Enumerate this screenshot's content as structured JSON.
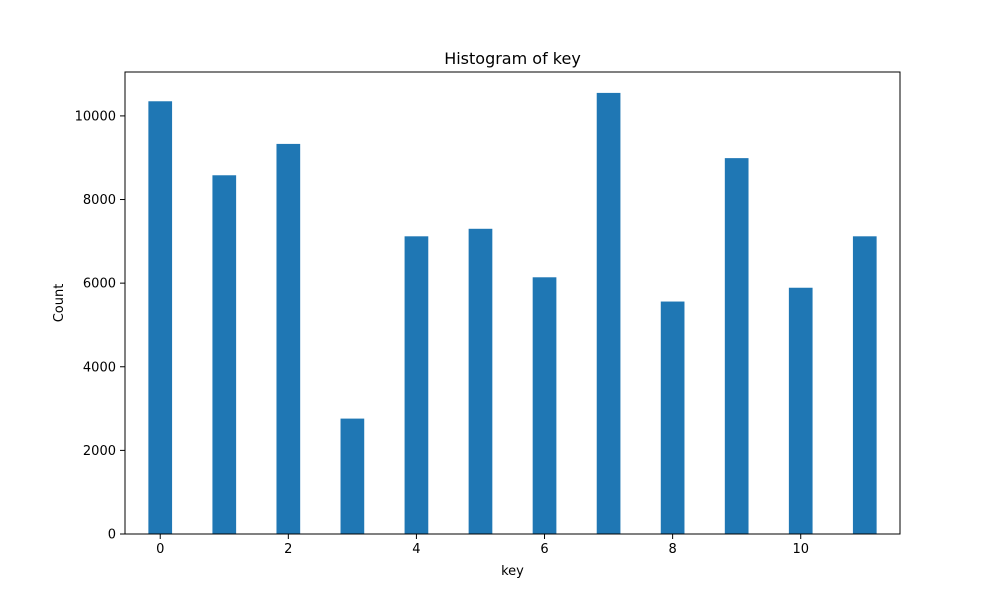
{
  "chart_data": {
    "type": "bar",
    "title": "Histogram of key",
    "xlabel": "key",
    "ylabel": "Count",
    "bar_color": "#1f77b4",
    "grid": false,
    "x": [
      0,
      1,
      2,
      3,
      4,
      5,
      6,
      7,
      8,
      9,
      10,
      11
    ],
    "values": [
      10350,
      8580,
      9330,
      2760,
      7120,
      7300,
      6140,
      10550,
      5560,
      8990,
      5890,
      7120
    ],
    "bar_width": 0.37,
    "xlim": [
      -0.55,
      11.55
    ],
    "ylim": [
      0,
      11050
    ],
    "xticks": [
      0,
      2,
      4,
      6,
      8,
      10
    ],
    "xtick_labels": [
      "0",
      "2",
      "4",
      "6",
      "8",
      "10"
    ],
    "yticks": [
      0,
      2000,
      4000,
      6000,
      8000,
      10000
    ],
    "ytick_labels": [
      "0",
      "2000",
      "4000",
      "6000",
      "8000",
      "10000"
    ]
  }
}
